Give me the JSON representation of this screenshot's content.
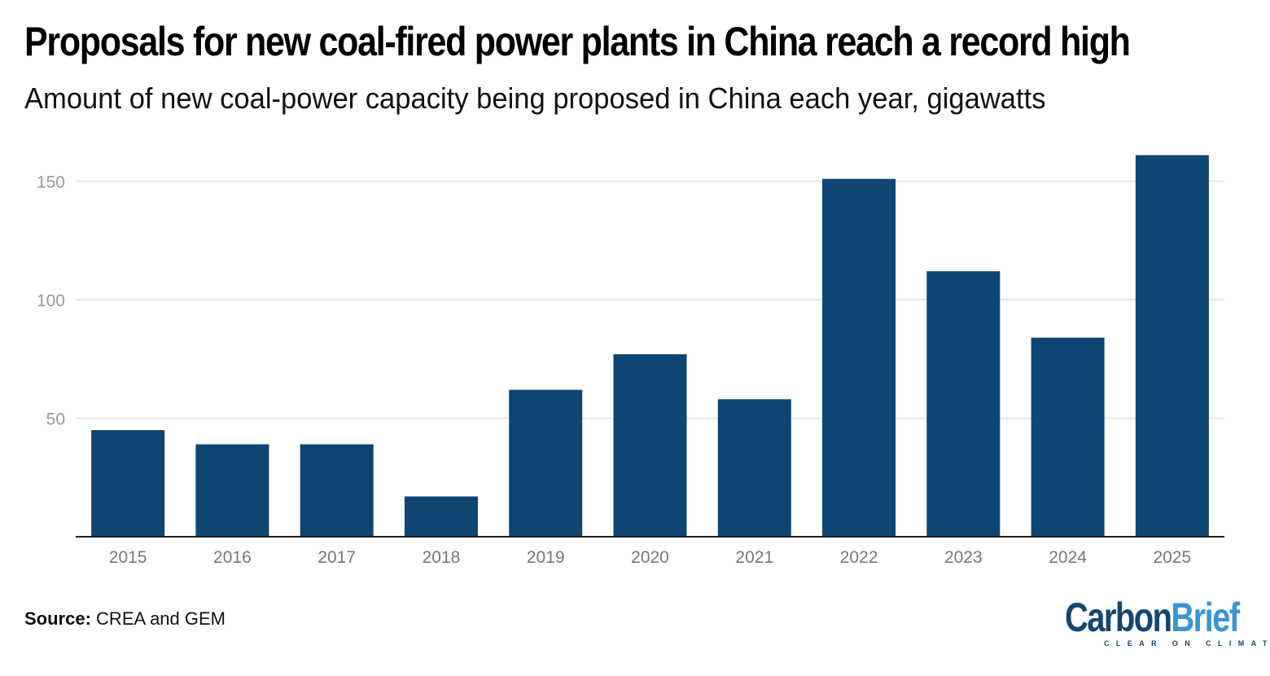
{
  "chart_data": {
    "type": "bar",
    "title": "Proposals for new coal-fired power plants in China reach a record high",
    "subtitle": "Amount of new coal-power capacity being proposed in China each year, gigawatts",
    "categories": [
      "2015",
      "2016",
      "2017",
      "2018",
      "2019",
      "2020",
      "2021",
      "2022",
      "2023",
      "2024",
      "2025"
    ],
    "values": [
      45,
      39,
      39,
      17,
      62,
      77,
      58,
      151,
      112,
      84,
      161
    ],
    "xlabel": "",
    "ylabel": "",
    "ylim": [
      0,
      165
    ],
    "yticks": [
      50,
      100,
      150
    ],
    "grid": true,
    "bar_color": "#0f4571"
  },
  "source": {
    "label": "Source:",
    "text": "CREA and GEM"
  },
  "logo": {
    "part1": "Carbon",
    "part2": "Brief",
    "tagline": "CLEAR ON CLIMATE"
  }
}
